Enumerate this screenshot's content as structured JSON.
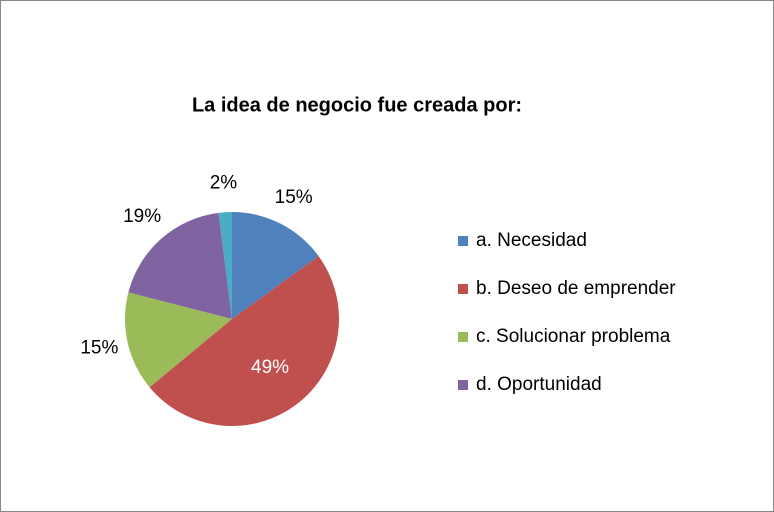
{
  "chart_data": {
    "type": "pie",
    "title": "La idea de negocio fue creada por:",
    "categories": [
      "a. Necesidad",
      "b. Deseo de emprender",
      "c. Solucionar problema",
      "d. Oportunidad",
      null
    ],
    "values": [
      15,
      49,
      15,
      19,
      2
    ],
    "value_labels": [
      "15%",
      "49%",
      "15%",
      "19%",
      "2%"
    ],
    "colors": [
      "#4f81bd",
      "#c0504d",
      "#9bbb59",
      "#8064a2",
      "#4bacc6"
    ],
    "legend": "right"
  }
}
